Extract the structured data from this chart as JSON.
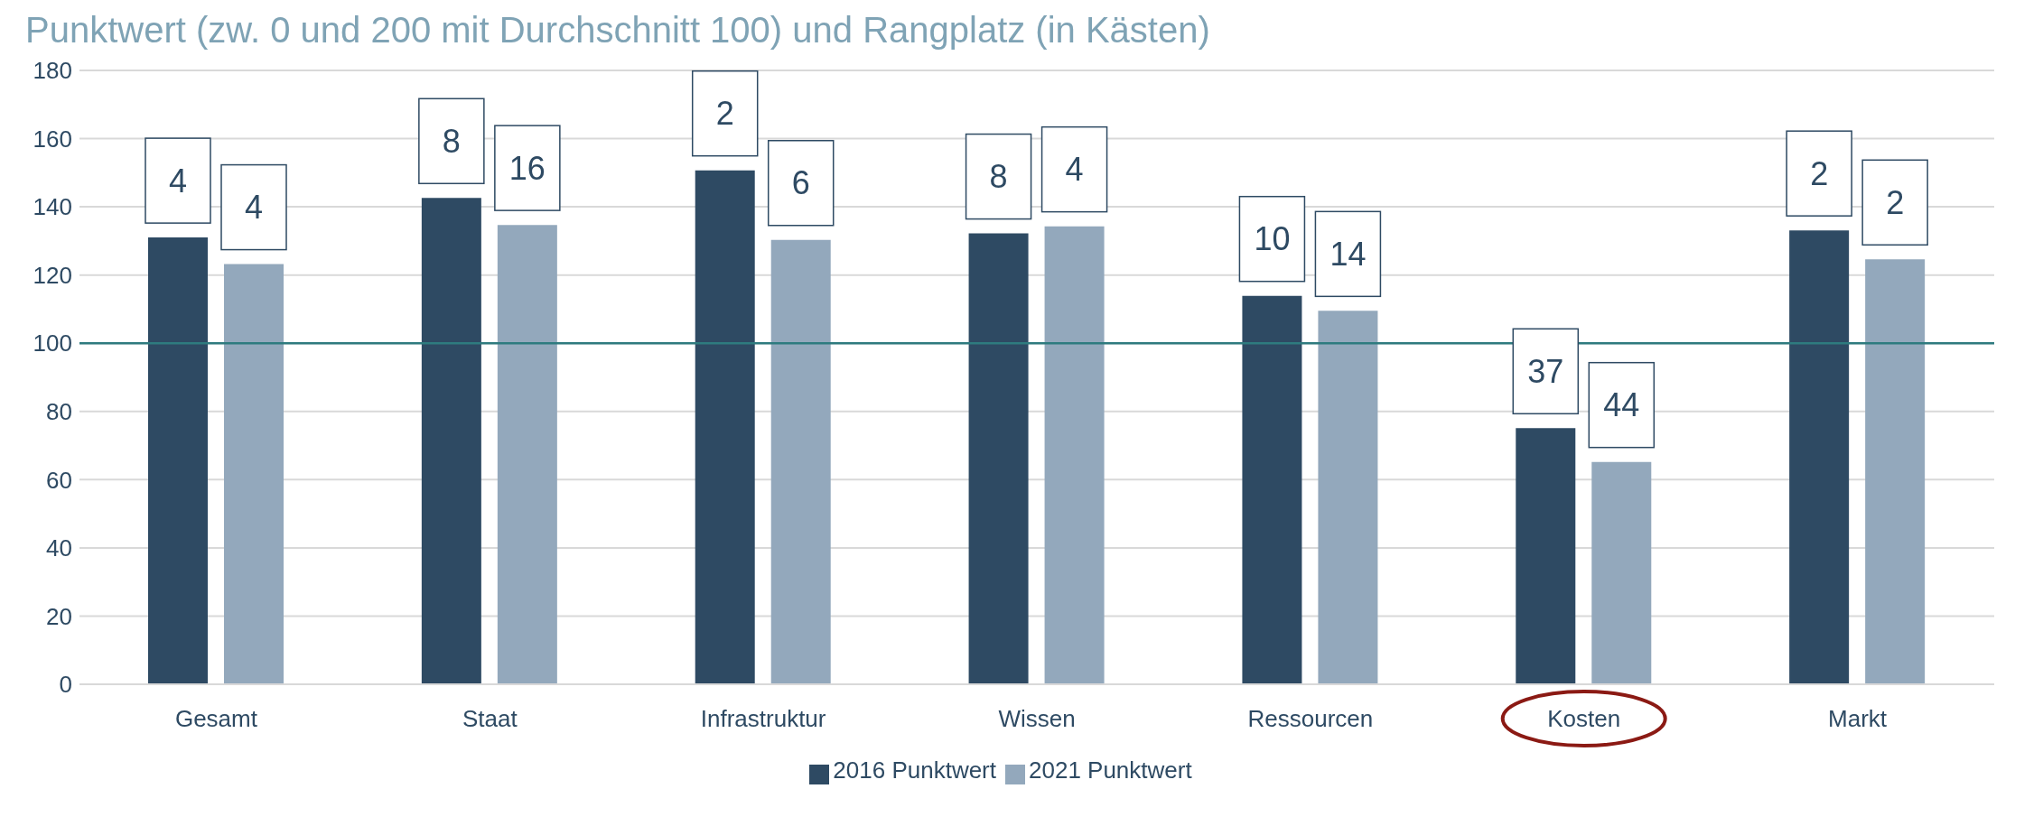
{
  "chart_data": {
    "type": "bar",
    "title": "Punktwert (zw. 0 und 200 mit Durchschnitt 100) und Rangplatz (in Kästen)",
    "categories": [
      "Gesamt",
      "Staat",
      "Infrastruktur",
      "Wissen",
      "Ressourcen",
      "Kosten",
      "Markt"
    ],
    "series": [
      {
        "name": "2016 Punktwert",
        "color": "#2e4a63",
        "values": [
          131,
          142.6,
          150.7,
          132.2,
          113.9,
          75.1,
          133.1
        ]
      },
      {
        "name": "2021 Punktwert",
        "color": "#93a8bc",
        "values": [
          123.2,
          134.7,
          130.3,
          134.3,
          109.5,
          65.2,
          124.6
        ]
      }
    ],
    "ylim": [
      0,
      180
    ],
    "yticks": [
      0,
      20,
      40,
      60,
      80,
      100,
      120,
      140,
      160,
      180
    ],
    "grid": "y",
    "legend": "bottom",
    "ref_lines": [
      {
        "axis": "y",
        "value": 100,
        "color": "#2e7b7f"
      }
    ],
    "annotations": [
      "4",
      "4",
      "8",
      "16",
      "2",
      "6",
      "8",
      "4",
      "10",
      "14",
      "37",
      "44",
      "2",
      "2"
    ]
  }
}
